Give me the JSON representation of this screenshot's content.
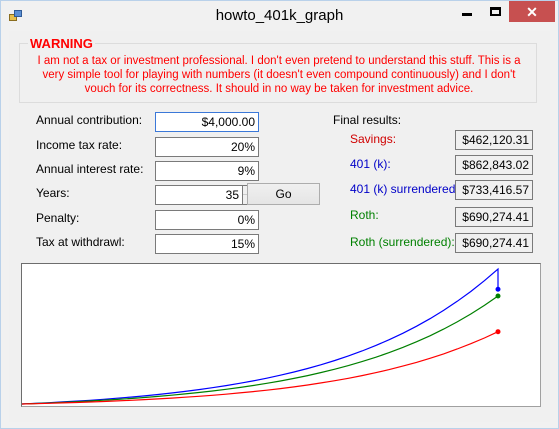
{
  "window": {
    "title": "howto_401k_graph"
  },
  "warning": {
    "title": "WARNING",
    "text": "I am not a tax or investment professional. I don't even pretend to understand this stuff. This is a very simple tool for playing with numbers (it doesn't even compound continuously) and I don't vouch for its correctness. It should in no way be taken for investment advice."
  },
  "inputs": {
    "annual_contribution": {
      "label": "Annual contribution:",
      "value": "$4,000.00"
    },
    "income_tax_rate": {
      "label": "Income tax rate:",
      "value": "20%"
    },
    "annual_interest_rate": {
      "label": "Annual interest rate:",
      "value": "9%"
    },
    "years": {
      "label": "Years:",
      "value": "35"
    },
    "penalty": {
      "label": "Penalty:",
      "value": "0%"
    },
    "tax_at_withdrawl": {
      "label": "Tax at withdrawl:",
      "value": "15%"
    }
  },
  "go_label": "Go",
  "results": {
    "header": "Final results:",
    "savings": {
      "label": "Savings:",
      "value": "$462,120.31",
      "color": "#d00000"
    },
    "k401": {
      "label": "401 (k):",
      "value": "$862,843.02",
      "color": "#0000c8"
    },
    "k401_surrendered": {
      "label": "401 (k) surrendered:",
      "value": "$733,416.57",
      "color": "#0000c8"
    },
    "roth": {
      "label": "Roth:",
      "value": "$690,274.41",
      "color": "#008000"
    },
    "roth_surrendered": {
      "label": "Roth (surrendered):",
      "value": "$690,274.41",
      "color": "#008000"
    }
  },
  "chart_data": {
    "type": "line",
    "xlim": [
      0,
      35
    ],
    "ylim": [
      0,
      862843.02
    ],
    "grid": false,
    "series": [
      {
        "color": "#0000ff",
        "final": 862843.02,
        "end_drop": 733416.57
      },
      {
        "color": "#008000",
        "final": 690274.41
      },
      {
        "color": "#ff0000",
        "final": 462120.31
      }
    ]
  }
}
